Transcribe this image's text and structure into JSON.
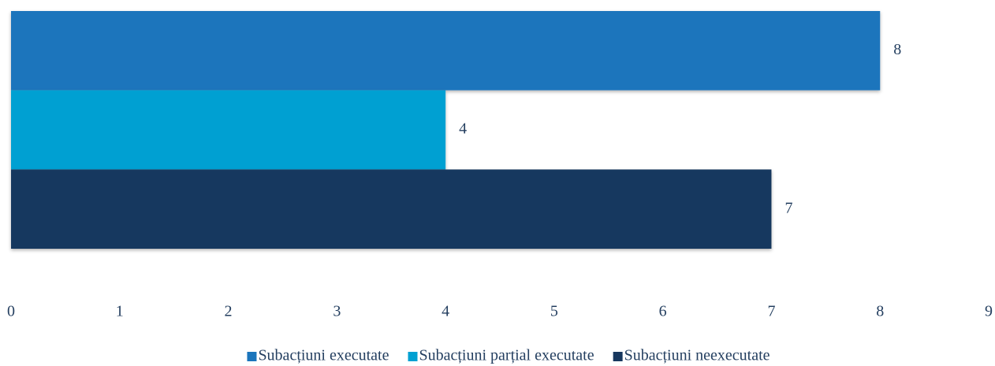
{
  "chart_data": {
    "type": "bar",
    "orientation": "horizontal",
    "categories": [
      null
    ],
    "series": [
      {
        "name": "Subacțiuni executate",
        "color": "#1b75bc",
        "values": [
          8
        ]
      },
      {
        "name": "Subacțiuni parțial executate",
        "color": "#00a0d2",
        "values": [
          4
        ]
      },
      {
        "name": "Subacțiuni neexecutate",
        "color": "#17375e",
        "values": [
          7
        ]
      }
    ],
    "xlim": [
      0,
      9
    ],
    "xticks": [
      0,
      1,
      2,
      3,
      4,
      5,
      6,
      7,
      8,
      9
    ],
    "grid": false,
    "legend": "bottom"
  }
}
